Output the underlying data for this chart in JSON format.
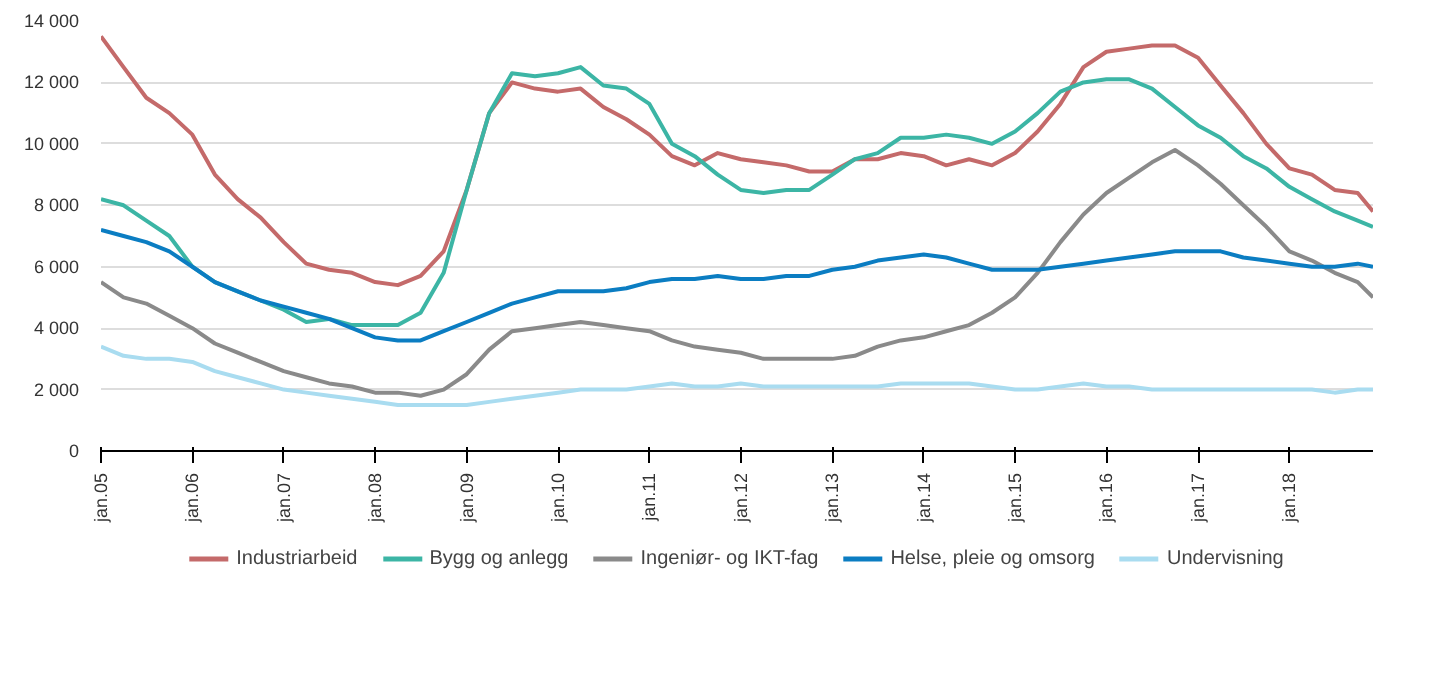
{
  "chart_data": {
    "type": "line",
    "x": [
      "2005-01",
      "2005-04",
      "2005-07",
      "2005-10",
      "2006-01",
      "2006-04",
      "2006-07",
      "2006-10",
      "2007-01",
      "2007-04",
      "2007-07",
      "2007-10",
      "2008-01",
      "2008-04",
      "2008-07",
      "2008-10",
      "2009-01",
      "2009-04",
      "2009-07",
      "2009-10",
      "2010-01",
      "2010-04",
      "2010-07",
      "2010-10",
      "2011-01",
      "2011-04",
      "2011-07",
      "2011-10",
      "2012-01",
      "2012-04",
      "2012-07",
      "2012-10",
      "2013-01",
      "2013-04",
      "2013-07",
      "2013-10",
      "2014-01",
      "2014-04",
      "2014-07",
      "2014-10",
      "2015-01",
      "2015-04",
      "2015-07",
      "2015-10",
      "2016-01",
      "2016-04",
      "2016-07",
      "2016-10",
      "2017-01",
      "2017-04",
      "2017-07",
      "2017-10",
      "2018-01",
      "2018-04",
      "2018-07",
      "2018-10",
      "2018-12"
    ],
    "series": [
      {
        "name": "Industriarbeid",
        "color": "#c46a6a",
        "values": [
          13500,
          12500,
          11500,
          11000,
          10300,
          9000,
          8200,
          7600,
          6800,
          6100,
          5900,
          5800,
          5500,
          5400,
          5700,
          6500,
          8500,
          11000,
          12000,
          11800,
          11700,
          11800,
          11200,
          10800,
          10300,
          9600,
          9300,
          9700,
          9500,
          9400,
          9300,
          9100,
          9100,
          9500,
          9500,
          9700,
          9600,
          9300,
          9500,
          9300,
          9700,
          10400,
          11300,
          12500,
          13000,
          13100,
          13200,
          13200,
          12800,
          11900,
          11000,
          10000,
          9200,
          9000,
          8500,
          8400,
          7800
        ]
      },
      {
        "name": "Bygg og anlegg",
        "color": "#3cb5a5",
        "values": [
          8200,
          8000,
          7500,
          7000,
          6000,
          5500,
          5200,
          4900,
          4600,
          4200,
          4300,
          4100,
          4100,
          4100,
          4500,
          5800,
          8500,
          11000,
          12300,
          12200,
          12300,
          12500,
          11900,
          11800,
          11300,
          10000,
          9600,
          9000,
          8500,
          8400,
          8500,
          8500,
          9000,
          9500,
          9700,
          10200,
          10200,
          10300,
          10200,
          10000,
          10400,
          11000,
          11700,
          12000,
          12100,
          12100,
          11800,
          11200,
          10600,
          10200,
          9600,
          9200,
          8600,
          8200,
          7800,
          7500,
          7300
        ]
      },
      {
        "name": "Ingeniør- og IKT-fag",
        "color": "#8a8a8a",
        "values": [
          5500,
          5000,
          4800,
          4400,
          4000,
          3500,
          3200,
          2900,
          2600,
          2400,
          2200,
          2100,
          1900,
          1900,
          1800,
          2000,
          2500,
          3300,
          3900,
          4000,
          4100,
          4200,
          4100,
          4000,
          3900,
          3600,
          3400,
          3300,
          3200,
          3000,
          3000,
          3000,
          3000,
          3100,
          3400,
          3600,
          3700,
          3900,
          4100,
          4500,
          5000,
          5800,
          6800,
          7700,
          8400,
          8900,
          9400,
          9800,
          9300,
          8700,
          8000,
          7300,
          6500,
          6200,
          5800,
          5500,
          5000
        ]
      },
      {
        "name": "Helse, pleie og omsorg",
        "color": "#0b7dc2",
        "values": [
          7200,
          7000,
          6800,
          6500,
          6000,
          5500,
          5200,
          4900,
          4700,
          4500,
          4300,
          4000,
          3700,
          3600,
          3600,
          3900,
          4200,
          4500,
          4800,
          5000,
          5200,
          5200,
          5200,
          5300,
          5500,
          5600,
          5600,
          5700,
          5600,
          5600,
          5700,
          5700,
          5900,
          6000,
          6200,
          6300,
          6400,
          6300,
          6100,
          5900,
          5900,
          5900,
          6000,
          6100,
          6200,
          6300,
          6400,
          6500,
          6500,
          6500,
          6300,
          6200,
          6100,
          6000,
          6000,
          6100,
          6000
        ]
      },
      {
        "name": "Undervisning",
        "color": "#a9dcf0",
        "values": [
          3400,
          3100,
          3000,
          3000,
          2900,
          2600,
          2400,
          2200,
          2000,
          1900,
          1800,
          1700,
          1600,
          1500,
          1500,
          1500,
          1500,
          1600,
          1700,
          1800,
          1900,
          2000,
          2000,
          2000,
          2100,
          2200,
          2100,
          2100,
          2200,
          2100,
          2100,
          2100,
          2100,
          2100,
          2100,
          2200,
          2200,
          2200,
          2200,
          2100,
          2000,
          2000,
          2100,
          2200,
          2100,
          2100,
          2000,
          2000,
          2000,
          2000,
          2000,
          2000,
          2000,
          2000,
          1900,
          2000,
          2000
        ]
      }
    ],
    "xlim": [
      "2005-01",
      "2018-12"
    ],
    "xticks": [
      {
        "value": "2005-01",
        "label": "jan.05"
      },
      {
        "value": "2006-01",
        "label": "jan.06"
      },
      {
        "value": "2007-01",
        "label": "jan.07"
      },
      {
        "value": "2008-01",
        "label": "jan.08"
      },
      {
        "value": "2009-01",
        "label": "jan.09"
      },
      {
        "value": "2010-01",
        "label": "jan.10"
      },
      {
        "value": "2011-01",
        "label": "jan.11"
      },
      {
        "value": "2012-01",
        "label": "jan.12"
      },
      {
        "value": "2013-01",
        "label": "jan.13"
      },
      {
        "value": "2014-01",
        "label": "jan.14"
      },
      {
        "value": "2015-01",
        "label": "jan.15"
      },
      {
        "value": "2016-01",
        "label": "jan.16"
      },
      {
        "value": "2017-01",
        "label": "jan.17"
      },
      {
        "value": "2018-01",
        "label": "jan.18"
      }
    ],
    "ylim": [
      0,
      14000
    ],
    "yticks": [
      0,
      {
        "value": 2000,
        "label": "2 000"
      },
      {
        "value": 4000,
        "label": "4 000"
      },
      {
        "value": 6000,
        "label": "6 000"
      },
      {
        "value": 8000,
        "label": "8 000"
      },
      {
        "value": 10000,
        "label": "10 000"
      },
      {
        "value": 12000,
        "label": "12 000"
      },
      {
        "value": 14000,
        "label": "14 000"
      }
    ],
    "grid": "y",
    "legend": "bottom",
    "marker": "none",
    "line_style": "solid"
  }
}
